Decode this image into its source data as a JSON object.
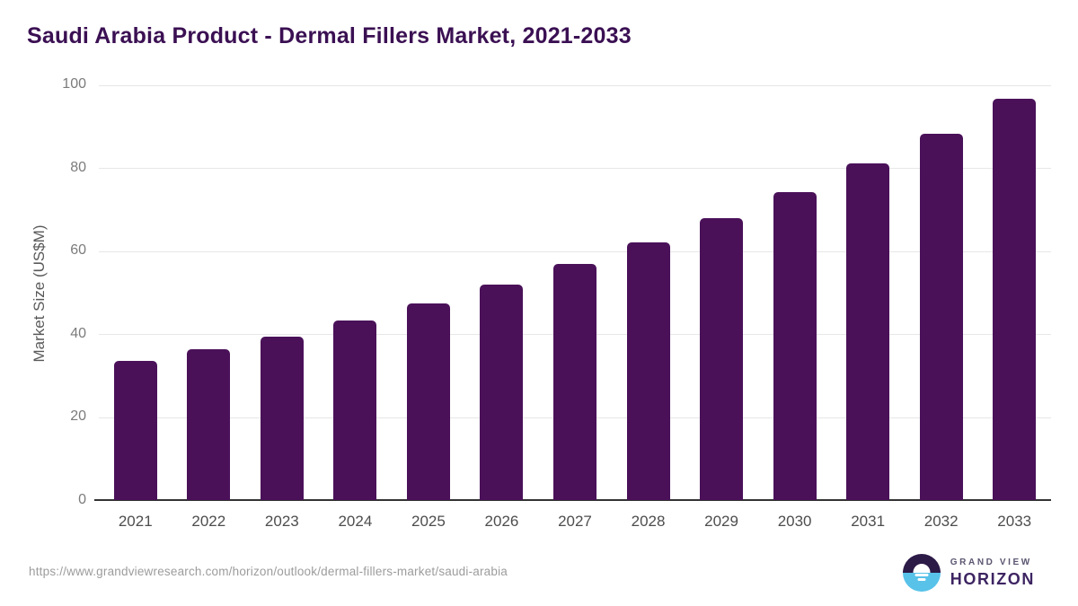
{
  "title": "Saudi Arabia Product - Dermal Fillers Market, 2021-2033",
  "chart_data": {
    "type": "bar",
    "categories": [
      "2021",
      "2022",
      "2023",
      "2024",
      "2025",
      "2026",
      "2027",
      "2028",
      "2029",
      "2030",
      "2031",
      "2032",
      "2033"
    ],
    "values": [
      33.4,
      36.2,
      39.4,
      43.1,
      47.2,
      51.8,
      56.8,
      62.0,
      67.9,
      74.1,
      81.0,
      88.2,
      96.5
    ],
    "title": "Saudi Arabia Product - Dermal Fillers Market, 2021-2033",
    "xlabel": "",
    "ylabel": "Market Size (US$M)",
    "ylim": [
      0,
      100
    ],
    "yticks": [
      0,
      20,
      40,
      60,
      80,
      100
    ],
    "legend": "none",
    "grid": "horizontal",
    "bar_color": "#4a1159"
  },
  "footer": {
    "source_url": "https://www.grandviewresearch.com/horizon/outlook/dermal-fillers-market/saudi-arabia",
    "brand_line1": "GRAND VIEW",
    "brand_line2": "HORIZON"
  },
  "colors": {
    "title_text": "#3b1053",
    "bar_fill": "#4a1159",
    "gridline": "#e7e7e7",
    "axis_line": "#333333",
    "tick_text": "#7b7b7b",
    "logo_top": "#2c1a47",
    "logo_bottom": "#58c2e9"
  }
}
